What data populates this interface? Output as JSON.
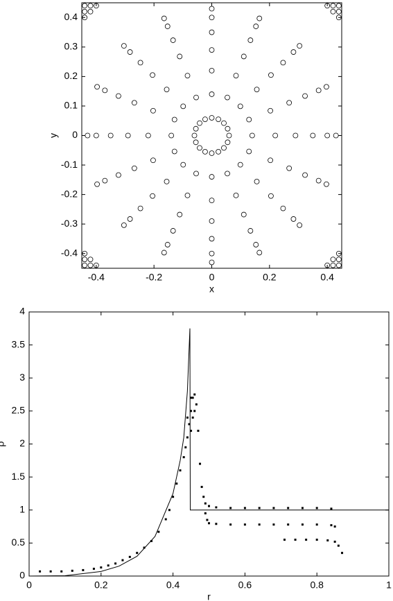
{
  "chart_data": [
    {
      "type": "scatter",
      "xlabel": "x",
      "ylabel": "y",
      "xlim": [
        -0.45,
        0.45
      ],
      "ylim": [
        -0.45,
        0.45
      ],
      "xticks": [
        -0.4,
        -0.2,
        0,
        0.2,
        0.4
      ],
      "yticks": [
        -0.4,
        -0.3,
        -0.2,
        -0.1,
        0,
        0.1,
        0.2,
        0.3,
        0.4
      ],
      "series": [
        {
          "mode": "circles",
          "color": "#000000",
          "x": [
            0.06,
            0.14,
            0.22,
            0.29,
            0.35,
            0.4,
            0.43,
            0.055,
            0.129,
            0.203,
            0.268,
            0.323,
            0.37,
            0.397,
            0.042,
            0.099,
            0.156,
            0.205,
            0.247,
            0.283,
            0.304,
            0.023,
            0.054,
            0.084,
            0.111,
            0.134,
            0.153,
            0.165,
            0,
            0,
            0,
            0,
            0,
            0,
            0,
            -0.023,
            -0.054,
            -0.084,
            -0.111,
            -0.134,
            -0.153,
            -0.165,
            -0.042,
            -0.099,
            -0.156,
            -0.205,
            -0.247,
            -0.283,
            -0.304,
            -0.055,
            -0.129,
            -0.203,
            -0.268,
            -0.323,
            -0.37,
            -0.397,
            -0.06,
            -0.14,
            -0.22,
            -0.29,
            -0.35,
            -0.4,
            -0.43,
            -0.055,
            -0.129,
            -0.203,
            -0.268,
            -0.323,
            -0.37,
            -0.397,
            -0.042,
            -0.099,
            -0.156,
            -0.205,
            -0.247,
            -0.283,
            -0.304,
            -0.023,
            -0.054,
            -0.084,
            -0.111,
            -0.134,
            -0.153,
            -0.165,
            0,
            0,
            0,
            0,
            0,
            0,
            0,
            0.023,
            0.054,
            0.084,
            0.111,
            0.134,
            0.153,
            0.165,
            0.042,
            0.099,
            0.156,
            0.205,
            0.247,
            0.283,
            0.304,
            0.055,
            0.129,
            0.203,
            0.268,
            0.323,
            0.37,
            0.397,
            0.44,
            0.42,
            0.44,
            0.4,
            0.44,
            0.42,
            -0.44,
            -0.42,
            -0.44,
            -0.4,
            -0.44,
            -0.42,
            -0.44,
            -0.42,
            -0.44,
            -0.4,
            -0.44,
            -0.42,
            0.44,
            0.42,
            0.44,
            0.4,
            0.44,
            0.42
          ],
          "values": [
            0,
            0,
            0,
            0,
            0,
            0,
            0,
            0.023,
            0.054,
            0.084,
            0.111,
            0.134,
            0.153,
            0.165,
            0.042,
            0.099,
            0.156,
            0.205,
            0.247,
            0.283,
            0.304,
            0.055,
            0.129,
            0.203,
            0.268,
            0.323,
            0.37,
            0.397,
            0.06,
            0.14,
            0.22,
            0.29,
            0.35,
            0.4,
            0.43,
            0.055,
            0.129,
            0.203,
            0.268,
            0.323,
            0.37,
            0.397,
            0.042,
            0.099,
            0.156,
            0.205,
            0.247,
            0.283,
            0.304,
            0.023,
            0.054,
            0.084,
            0.111,
            0.134,
            0.153,
            0.165,
            0,
            0,
            0,
            0,
            0,
            0,
            0,
            -0.023,
            -0.054,
            -0.084,
            -0.111,
            -0.134,
            -0.153,
            -0.165,
            -0.042,
            -0.099,
            -0.156,
            -0.205,
            -0.247,
            -0.283,
            -0.304,
            -0.055,
            -0.129,
            -0.203,
            -0.268,
            -0.323,
            -0.37,
            -0.397,
            -0.06,
            -0.14,
            -0.22,
            -0.29,
            -0.35,
            -0.4,
            -0.43,
            -0.055,
            -0.129,
            -0.203,
            -0.268,
            -0.323,
            -0.37,
            -0.397,
            -0.042,
            -0.099,
            -0.156,
            -0.205,
            -0.247,
            -0.283,
            -0.304,
            -0.023,
            -0.054,
            -0.084,
            -0.111,
            -0.134,
            -0.153,
            -0.165,
            0.44,
            0.44,
            0.42,
            0.44,
            0.4,
            0.42,
            0.44,
            0.44,
            0.42,
            0.44,
            0.4,
            0.42,
            -0.44,
            -0.44,
            -0.42,
            -0.44,
            -0.4,
            -0.42,
            -0.44,
            -0.44,
            -0.42,
            -0.44,
            -0.4,
            -0.42
          ]
        }
      ]
    },
    {
      "type": "scatter",
      "xlabel": "r",
      "ylabel": "ρ",
      "xlim": [
        0,
        1
      ],
      "ylim": [
        0,
        4
      ],
      "xticks": [
        0,
        0.2,
        0.4,
        0.6,
        0.8,
        1
      ],
      "yticks": [
        0,
        0.5,
        1,
        1.5,
        2,
        2.5,
        3,
        3.5,
        4
      ],
      "series": [
        {
          "mode": "line",
          "color": "#000000",
          "x": [
            0,
            0.1,
            0.2,
            0.25,
            0.3,
            0.35,
            0.4,
            0.42,
            0.43,
            0.44,
            0.447,
            0.448,
            1
          ],
          "values": [
            0,
            0.005,
            0.07,
            0.15,
            0.3,
            0.6,
            1.25,
            1.75,
            2.1,
            2.8,
            3.75,
            1,
            1
          ]
        },
        {
          "mode": "dots",
          "color": "#000000",
          "x": [
            0.03,
            0.06,
            0.09,
            0.12,
            0.15,
            0.18,
            0.2,
            0.22,
            0.24,
            0.26,
            0.28,
            0.3,
            0.32,
            0.34,
            0.36,
            0.38,
            0.39,
            0.4,
            0.41,
            0.42,
            0.43,
            0.435,
            0.44,
            0.445,
            0.45,
            0.455,
            0.46,
            0.46,
            0.465,
            0.47,
            0.475,
            0.48,
            0.485,
            0.49,
            0.5,
            0.52,
            0.56,
            0.6,
            0.64,
            0.68,
            0.72,
            0.76,
            0.8,
            0.84,
            0.44,
            0.45,
            0.455,
            0.45,
            0.49,
            0.495,
            0.5,
            0.52,
            0.56,
            0.6,
            0.64,
            0.68,
            0.72,
            0.76,
            0.8,
            0.84,
            0.85,
            0.71,
            0.74,
            0.77,
            0.8,
            0.83,
            0.85,
            0.86,
            0.87
          ],
          "values": [
            0.07,
            0.07,
            0.07,
            0.08,
            0.09,
            0.11,
            0.13,
            0.16,
            0.19,
            0.24,
            0.29,
            0.35,
            0.43,
            0.53,
            0.67,
            0.86,
            1.0,
            1.2,
            1.4,
            1.6,
            1.8,
            1.95,
            2.1,
            2.3,
            2.5,
            2.7,
            2.75,
            2.5,
            2.6,
            2.2,
            1.7,
            1.35,
            1.2,
            1.1,
            1.06,
            1.04,
            1.03,
            1.03,
            1.03,
            1.03,
            1.03,
            1.03,
            1.03,
            1.02,
            2.4,
            2.2,
            2.4,
            2.7,
            0.95,
            0.85,
            0.8,
            0.79,
            0.78,
            0.78,
            0.78,
            0.78,
            0.78,
            0.78,
            0.78,
            0.77,
            0.75,
            0.55,
            0.55,
            0.55,
            0.55,
            0.54,
            0.52,
            0.46,
            0.35
          ]
        }
      ]
    }
  ]
}
